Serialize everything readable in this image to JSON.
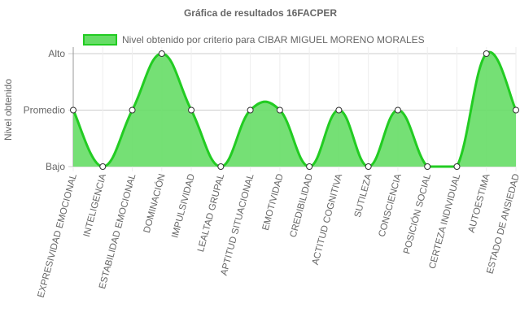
{
  "chart_data": {
    "type": "line",
    "title": "Gráfica de resultados 16FACPER",
    "y_label": "Nivel obtenido",
    "categories": [
      "EXPRESIVIDAD EMOCIONAL",
      "INTELIGENCIA",
      "ESTABILIDAD EMOCIONAL",
      "DOMINACIÓN",
      "IMPULSIVIDAD",
      "LEALTAD GRUPAL",
      "APTITUD SITUACIONAL",
      "EMOTIVIDAD",
      "CREDIBILIDAD",
      "ACTITUD COGNITIVA",
      "SUTILEZA",
      "CONSCIENCIA",
      "POSICIÓN SOCIAL",
      "CERTEZA INDIVIDUAL",
      "AUTOESTIMA",
      "ESTADO DE ANSIEDAD"
    ],
    "series": [
      {
        "name": "Nivel obtenido por criterio para CIBAR MIGUEL MORENO MORALES",
        "color": "#22cc22",
        "fill": "#66dd66",
        "values": [
          1,
          0,
          1,
          2,
          1,
          0,
          1,
          1,
          0,
          1,
          0,
          1,
          0,
          0,
          2,
          1
        ]
      }
    ],
    "ylim": [
      0,
      2
    ],
    "yticks": [
      {
        "value": 0,
        "label": "Bajo"
      },
      {
        "value": 1,
        "label": "Promedio"
      },
      {
        "value": 2,
        "label": "Alto"
      }
    ],
    "grid": true,
    "legend": "top"
  }
}
